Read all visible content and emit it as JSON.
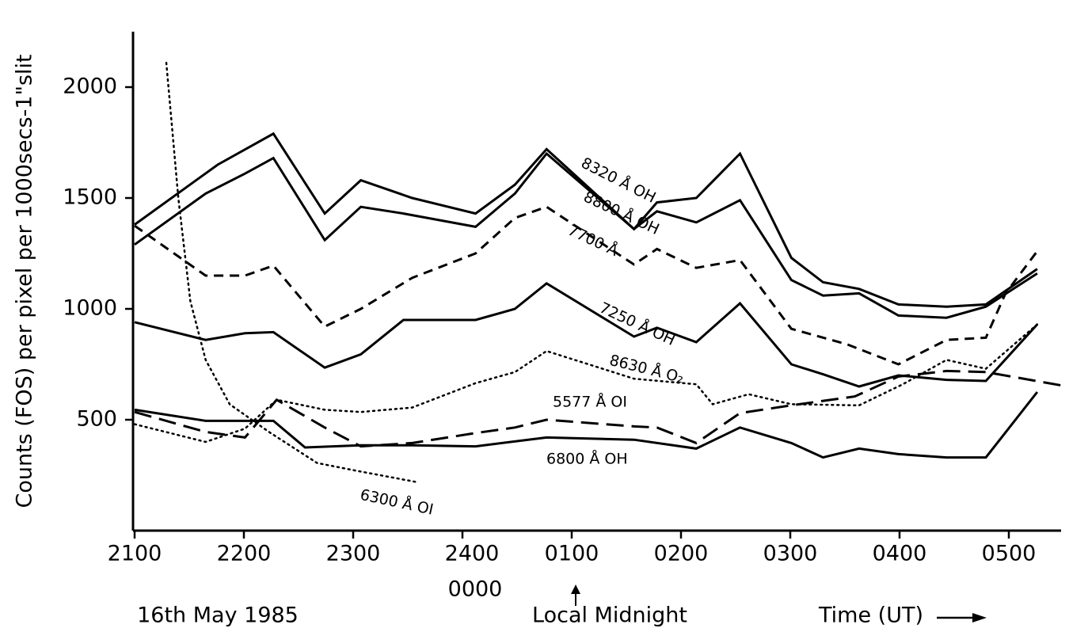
{
  "chart_data": {
    "type": "line",
    "ylabel": "Counts (FOS) per pixel per 1000secs-1\"slit",
    "xlim": [
      0,
      8.5
    ],
    "ylim": [
      0,
      2250
    ],
    "xticks": [
      {
        "value": 0,
        "label": "2100"
      },
      {
        "value": 1,
        "label": "2200"
      },
      {
        "value": 2,
        "label": "2300"
      },
      {
        "value": 3,
        "label": "2400"
      },
      {
        "value": 4,
        "label": "0100"
      },
      {
        "value": 5,
        "label": "0200"
      },
      {
        "value": 6,
        "label": "0300"
      },
      {
        "value": 7,
        "label": "0400"
      },
      {
        "value": 8,
        "label": "0500"
      }
    ],
    "yticks": [
      500,
      1000,
      1500,
      2000
    ],
    "annotations": [
      "0000",
      "16th May 1985",
      "Local Midnight",
      "Time (UT)"
    ],
    "series": [
      {
        "name": "8320 Å OH",
        "color": "#000000",
        "style": "solid",
        "x": [
          0,
          0.76,
          1.27,
          1.74,
          2.07,
          2.54,
          3.12,
          3.48,
          3.77,
          4.57,
          4.78,
          5.14,
          5.54,
          6.01,
          6.3,
          6.63,
          6.99,
          7.43,
          7.79,
          8.26
        ],
        "values": [
          1380,
          1650,
          1790,
          1430,
          1580,
          1500,
          1430,
          1560,
          1720,
          1360,
          1480,
          1500,
          1700,
          1230,
          1120,
          1090,
          1020,
          1010,
          1020,
          1180
        ]
      },
      {
        "name": "8800 Å OH",
        "color": "#000000",
        "style": "solid",
        "x": [
          0,
          0.65,
          1.01,
          1.27,
          1.74,
          2.07,
          2.46,
          3.12,
          3.48,
          3.77,
          4.57,
          4.78,
          5.14,
          5.54,
          6.01,
          6.3,
          6.63,
          6.99,
          7.43,
          7.79,
          8.26
        ],
        "values": [
          1290,
          1520,
          1610,
          1680,
          1310,
          1460,
          1430,
          1370,
          1520,
          1700,
          1360,
          1440,
          1390,
          1490,
          1130,
          1060,
          1070,
          970,
          960,
          1010,
          1160
        ]
      },
      {
        "name": "7700 Å",
        "color": "#000000",
        "style": "dashed",
        "x": [
          0,
          0.65,
          1.01,
          1.27,
          1.74,
          2.07,
          2.54,
          3.12,
          3.48,
          3.77,
          4.57,
          4.78,
          5.14,
          5.54,
          6.01,
          6.52,
          6.99,
          7.43,
          7.79,
          7.97,
          8.26
        ],
        "values": [
          1375,
          1150,
          1150,
          1195,
          920,
          1000,
          1140,
          1250,
          1410,
          1460,
          1200,
          1270,
          1185,
          1220,
          910,
          840,
          750,
          860,
          870,
          1070,
          1260
        ]
      },
      {
        "name": "7250 Å OH",
        "color": "#000000",
        "style": "solid",
        "x": [
          0,
          0.65,
          1.01,
          1.27,
          1.74,
          2.07,
          2.46,
          3.12,
          3.48,
          3.77,
          4.57,
          4.78,
          5.14,
          5.54,
          6.01,
          6.3,
          6.63,
          6.99,
          7.43,
          7.79,
          8.26
        ],
        "values": [
          940,
          860,
          890,
          895,
          735,
          795,
          950,
          950,
          1000,
          1115,
          875,
          915,
          850,
          1025,
          750,
          705,
          650,
          700,
          680,
          675,
          930
        ]
      },
      {
        "name": "8630 Å O₂",
        "color": "#000000",
        "style": "dotted",
        "x": [
          0,
          0.65,
          1.01,
          1.3,
          1.74,
          2.07,
          2.54,
          3.12,
          3.48,
          3.77,
          4.57,
          5.14,
          5.29,
          5.62,
          6.01,
          6.63,
          7.03,
          7.43,
          7.79,
          8.26
        ],
        "values": [
          480,
          400,
          460,
          590,
          545,
          535,
          555,
          665,
          715,
          810,
          685,
          660,
          570,
          615,
          570,
          565,
          660,
          770,
          730,
          930
        ]
      },
      {
        "name": "5577 Å OI",
        "color": "#000000",
        "style": "longdash",
        "x": [
          0,
          0.65,
          1.01,
          1.3,
          1.74,
          2.07,
          2.54,
          3.12,
          3.48,
          3.77,
          4.57,
          4.78,
          5.14,
          5.54,
          6.01,
          6.59,
          6.99,
          7.43,
          7.79,
          8.48
        ],
        "values": [
          535,
          445,
          420,
          590,
          465,
          380,
          395,
          440,
          465,
          500,
          470,
          465,
          395,
          530,
          565,
          605,
          695,
          720,
          715,
          655
        ]
      },
      {
        "name": "6800 Å OH",
        "color": "#000000",
        "style": "solid",
        "x": [
          0,
          0.65,
          1.27,
          1.56,
          2.07,
          2.54,
          3.12,
          3.77,
          4.57,
          5.14,
          5.54,
          6.01,
          6.3,
          6.63,
          6.99,
          7.43,
          7.79,
          8.26
        ],
        "values": [
          545,
          495,
          495,
          375,
          385,
          385,
          380,
          420,
          410,
          370,
          465,
          395,
          330,
          370,
          345,
          330,
          330,
          625
        ]
      },
      {
        "name": "6300 Å OI",
        "color": "#000000",
        "style": "dotted",
        "x": [
          0.29,
          0.4,
          0.51,
          0.65,
          0.87,
          1.23,
          1.67,
          2.03,
          2.57
        ],
        "values": [
          2110,
          1500,
          1035,
          770,
          570,
          445,
          305,
          270,
          220
        ]
      }
    ]
  }
}
